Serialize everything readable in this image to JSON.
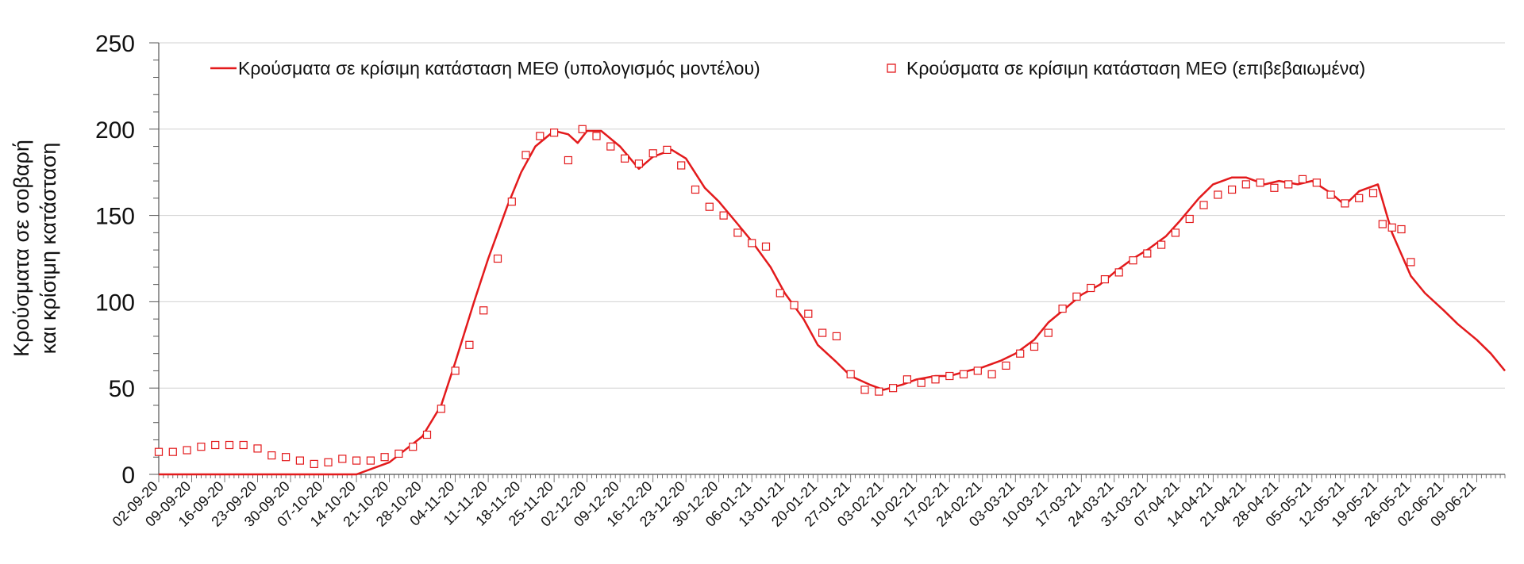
{
  "chart_data": {
    "type": "line",
    "ylabel_lines": [
      "Κρούσματα σε σοβαρή",
      "και κρίσιμη κατάσταση"
    ],
    "ylim": [
      0,
      250
    ],
    "yticks": [
      0,
      50,
      100,
      150,
      200,
      250
    ],
    "grid": true,
    "legend_position": "top",
    "x_start_date": "2020-09-02",
    "x_end_date": "2021-06-15",
    "xtick_labels": [
      "02-09-20",
      "09-09-20",
      "16-09-20",
      "23-09-20",
      "30-09-20",
      "07-10-20",
      "14-10-20",
      "21-10-20",
      "28-10-20",
      "04-11-20",
      "11-11-20",
      "18-11-20",
      "25-11-20",
      "02-12-20",
      "09-12-20",
      "16-12-20",
      "23-12-20",
      "30-12-20",
      "06-01-21",
      "13-01-21",
      "20-01-21",
      "27-01-21",
      "03-02-21",
      "10-02-21",
      "17-02-21",
      "24-02-21",
      "03-03-21",
      "10-03-21",
      "17-03-21",
      "24-03-21",
      "31-03-21",
      "07-04-21",
      "14-04-21",
      "21-04-21",
      "28-04-21",
      "05-05-21",
      "12-05-21",
      "19-05-21",
      "26-05-21",
      "02-06-21",
      "09-06-21"
    ],
    "series": [
      {
        "name": "Κρούσματα σε κρίσιμη κατάσταση ΜΕΘ (υπολογισμός μοντέλου)",
        "style": "line",
        "color": "#e31a1c",
        "points": [
          [
            "2020-09-02",
            0
          ],
          [
            "2020-10-14",
            0
          ],
          [
            "2020-10-21",
            7
          ],
          [
            "2020-10-28",
            22
          ],
          [
            "2020-11-01",
            40
          ],
          [
            "2020-11-04",
            65
          ],
          [
            "2020-11-08",
            100
          ],
          [
            "2020-11-11",
            125
          ],
          [
            "2020-11-15",
            155
          ],
          [
            "2020-11-18",
            175
          ],
          [
            "2020-11-21",
            190
          ],
          [
            "2020-11-25",
            199
          ],
          [
            "2020-11-28",
            197
          ],
          [
            "2020-11-30",
            192
          ],
          [
            "2020-12-02",
            199
          ],
          [
            "2020-12-05",
            199
          ],
          [
            "2020-12-09",
            190
          ],
          [
            "2020-12-13",
            177
          ],
          [
            "2020-12-16",
            184
          ],
          [
            "2020-12-20",
            188
          ],
          [
            "2020-12-23",
            183
          ],
          [
            "2020-12-27",
            166
          ],
          [
            "2020-12-30",
            158
          ],
          [
            "2021-01-03",
            145
          ],
          [
            "2021-01-06",
            135
          ],
          [
            "2021-01-10",
            120
          ],
          [
            "2021-01-13",
            105
          ],
          [
            "2021-01-17",
            90
          ],
          [
            "2021-01-20",
            75
          ],
          [
            "2021-01-24",
            65
          ],
          [
            "2021-01-27",
            57
          ],
          [
            "2021-01-31",
            52
          ],
          [
            "2021-02-03",
            49
          ],
          [
            "2021-02-07",
            52
          ],
          [
            "2021-02-10",
            55
          ],
          [
            "2021-02-14",
            57
          ],
          [
            "2021-02-17",
            57
          ],
          [
            "2021-02-21",
            60
          ],
          [
            "2021-02-24",
            62
          ],
          [
            "2021-02-28",
            66
          ],
          [
            "2021-03-03",
            70
          ],
          [
            "2021-03-07",
            78
          ],
          [
            "2021-03-10",
            88
          ],
          [
            "2021-03-14",
            97
          ],
          [
            "2021-03-17",
            104
          ],
          [
            "2021-03-21",
            110
          ],
          [
            "2021-03-24",
            117
          ],
          [
            "2021-03-28",
            125
          ],
          [
            "2021-03-31",
            130
          ],
          [
            "2021-04-04",
            138
          ],
          [
            "2021-04-07",
            147
          ],
          [
            "2021-04-11",
            160
          ],
          [
            "2021-04-14",
            168
          ],
          [
            "2021-04-18",
            172
          ],
          [
            "2021-04-21",
            172
          ],
          [
            "2021-04-25",
            168
          ],
          [
            "2021-04-28",
            170
          ],
          [
            "2021-05-02",
            168
          ],
          [
            "2021-05-05",
            170
          ],
          [
            "2021-05-09",
            163
          ],
          [
            "2021-05-12",
            156
          ],
          [
            "2021-05-15",
            164
          ],
          [
            "2021-05-19",
            168
          ],
          [
            "2021-05-22",
            140
          ],
          [
            "2021-05-26",
            115
          ],
          [
            "2021-05-29",
            105
          ],
          [
            "2021-06-02",
            95
          ],
          [
            "2021-06-05",
            87
          ],
          [
            "2021-06-09",
            78
          ],
          [
            "2021-06-12",
            70
          ],
          [
            "2021-06-15",
            60
          ]
        ]
      },
      {
        "name": "Κρούσματα σε κρίσιμη κατάσταση ΜΕΘ (επιβεβαιωμένα)",
        "style": "markers",
        "marker": "square",
        "color": "#e31a1c",
        "points": [
          [
            "2020-09-02",
            13
          ],
          [
            "2020-09-05",
            13
          ],
          [
            "2020-09-08",
            14
          ],
          [
            "2020-09-11",
            16
          ],
          [
            "2020-09-14",
            17
          ],
          [
            "2020-09-17",
            17
          ],
          [
            "2020-09-20",
            17
          ],
          [
            "2020-09-23",
            15
          ],
          [
            "2020-09-26",
            11
          ],
          [
            "2020-09-29",
            10
          ],
          [
            "2020-10-02",
            8
          ],
          [
            "2020-10-05",
            6
          ],
          [
            "2020-10-08",
            7
          ],
          [
            "2020-10-11",
            9
          ],
          [
            "2020-10-14",
            8
          ],
          [
            "2020-10-17",
            8
          ],
          [
            "2020-10-20",
            10
          ],
          [
            "2020-10-23",
            12
          ],
          [
            "2020-10-26",
            16
          ],
          [
            "2020-10-29",
            23
          ],
          [
            "2020-11-01",
            38
          ],
          [
            "2020-11-04",
            60
          ],
          [
            "2020-11-07",
            75
          ],
          [
            "2020-11-10",
            95
          ],
          [
            "2020-11-13",
            125
          ],
          [
            "2020-11-16",
            158
          ],
          [
            "2020-11-19",
            185
          ],
          [
            "2020-11-22",
            196
          ],
          [
            "2020-11-25",
            198
          ],
          [
            "2020-11-28",
            182
          ],
          [
            "2020-12-01",
            200
          ],
          [
            "2020-12-04",
            196
          ],
          [
            "2020-12-07",
            190
          ],
          [
            "2020-12-10",
            183
          ],
          [
            "2020-12-13",
            180
          ],
          [
            "2020-12-16",
            186
          ],
          [
            "2020-12-19",
            188
          ],
          [
            "2020-12-22",
            179
          ],
          [
            "2020-12-25",
            165
          ],
          [
            "2020-12-28",
            155
          ],
          [
            "2020-12-31",
            150
          ],
          [
            "2021-01-03",
            140
          ],
          [
            "2021-01-06",
            134
          ],
          [
            "2021-01-09",
            132
          ],
          [
            "2021-01-12",
            105
          ],
          [
            "2021-01-15",
            98
          ],
          [
            "2021-01-18",
            93
          ],
          [
            "2021-01-21",
            82
          ],
          [
            "2021-01-24",
            80
          ],
          [
            "2021-01-27",
            58
          ],
          [
            "2021-01-30",
            49
          ],
          [
            "2021-02-02",
            48
          ],
          [
            "2021-02-05",
            50
          ],
          [
            "2021-02-08",
            55
          ],
          [
            "2021-02-11",
            53
          ],
          [
            "2021-02-14",
            55
          ],
          [
            "2021-02-17",
            57
          ],
          [
            "2021-02-20",
            58
          ],
          [
            "2021-02-23",
            60
          ],
          [
            "2021-02-26",
            58
          ],
          [
            "2021-03-01",
            63
          ],
          [
            "2021-03-04",
            70
          ],
          [
            "2021-03-07",
            74
          ],
          [
            "2021-03-10",
            82
          ],
          [
            "2021-03-13",
            96
          ],
          [
            "2021-03-16",
            103
          ],
          [
            "2021-03-19",
            108
          ],
          [
            "2021-03-22",
            113
          ],
          [
            "2021-03-25",
            117
          ],
          [
            "2021-03-28",
            124
          ],
          [
            "2021-03-31",
            128
          ],
          [
            "2021-04-03",
            133
          ],
          [
            "2021-04-06",
            140
          ],
          [
            "2021-04-09",
            148
          ],
          [
            "2021-04-12",
            156
          ],
          [
            "2021-04-15",
            162
          ],
          [
            "2021-04-18",
            165
          ],
          [
            "2021-04-21",
            168
          ],
          [
            "2021-04-24",
            169
          ],
          [
            "2021-04-27",
            166
          ],
          [
            "2021-04-30",
            168
          ],
          [
            "2021-05-03",
            171
          ],
          [
            "2021-05-06",
            169
          ],
          [
            "2021-05-09",
            162
          ],
          [
            "2021-05-12",
            157
          ],
          [
            "2021-05-15",
            160
          ],
          [
            "2021-05-18",
            163
          ],
          [
            "2021-05-20",
            145
          ],
          [
            "2021-05-22",
            143
          ],
          [
            "2021-05-24",
            142
          ],
          [
            "2021-05-26",
            123
          ]
        ]
      }
    ]
  }
}
